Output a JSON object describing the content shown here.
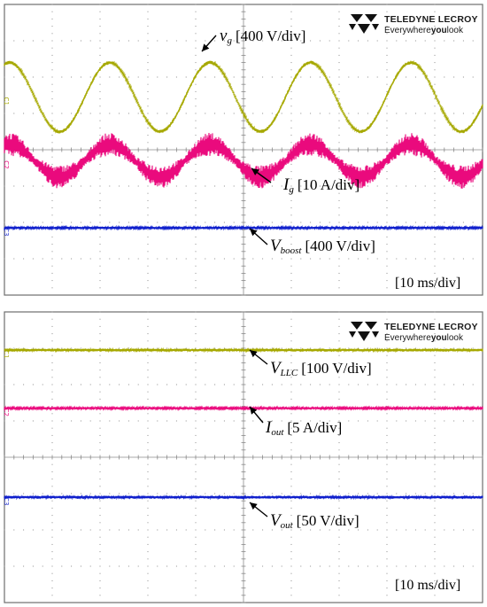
{
  "brand": {
    "name": "TELEDYNE LECROY",
    "tagline_pre": "Everywhere",
    "tagline_bold": "you",
    "tagline_post": "look"
  },
  "colors": {
    "yellow": "#a6a800",
    "magenta": "#ea0a7d",
    "blue": "#0f1fcc",
    "grid": "#8c8c8c",
    "frame": "#6e6e6e"
  },
  "chart_data": [
    {
      "type": "line",
      "timebase": "[10 ms/div]",
      "grid": true,
      "x_divisions": 10,
      "y_divisions": 8,
      "series": [
        {
          "id": "vg",
          "symbol": "v",
          "sub": "g",
          "scale": "[400 V/div]",
          "channel_marker": "C1",
          "waveform": "sine",
          "center_div": 5.45,
          "amplitude_div": 0.95,
          "period_div": 2.1,
          "noise_div": 0.05,
          "color": "#a6a800"
        },
        {
          "id": "ig",
          "symbol": "I",
          "sub": "g",
          "scale": "[10 A/div]",
          "channel_marker": "C2",
          "waveform": "sine_with_ripple",
          "center_div": 3.7,
          "amplitude_div": 0.45,
          "period_div": 2.1,
          "noise_div": 0.32,
          "color": "#ea0a7d"
        },
        {
          "id": "vboost",
          "symbol": "V",
          "sub": "boost",
          "scale": "[400 V/div]",
          "channel_marker": "C3",
          "waveform": "dc",
          "center_div": 1.85,
          "amplitude_div": 0,
          "period_div": 1,
          "noise_div": 0.03,
          "color": "#0f1fcc"
        }
      ]
    },
    {
      "type": "line",
      "timebase": "[10 ms/div]",
      "grid": true,
      "x_divisions": 10,
      "y_divisions": 8,
      "series": [
        {
          "id": "vllc",
          "symbol": "V",
          "sub": "LLC",
          "scale": "[100 V/div]",
          "channel_marker": "C1",
          "waveform": "dc",
          "center_div": 6.95,
          "amplitude_div": 0,
          "period_div": 1,
          "noise_div": 0.04,
          "color": "#a6a800"
        },
        {
          "id": "iout",
          "symbol": "I",
          "sub": "out",
          "scale": "[5 A/div]",
          "channel_marker": "C2",
          "waveform": "dc",
          "center_div": 5.35,
          "amplitude_div": 0,
          "period_div": 1,
          "noise_div": 0.03,
          "color": "#ea0a7d"
        },
        {
          "id": "vout",
          "symbol": "V",
          "sub": "out",
          "scale": "[50 V/div]",
          "channel_marker": "C3",
          "waveform": "dc",
          "center_div": 2.9,
          "amplitude_div": 0,
          "period_div": 1,
          "noise_div": 0.04,
          "color": "#0f1fcc"
        }
      ]
    }
  ]
}
